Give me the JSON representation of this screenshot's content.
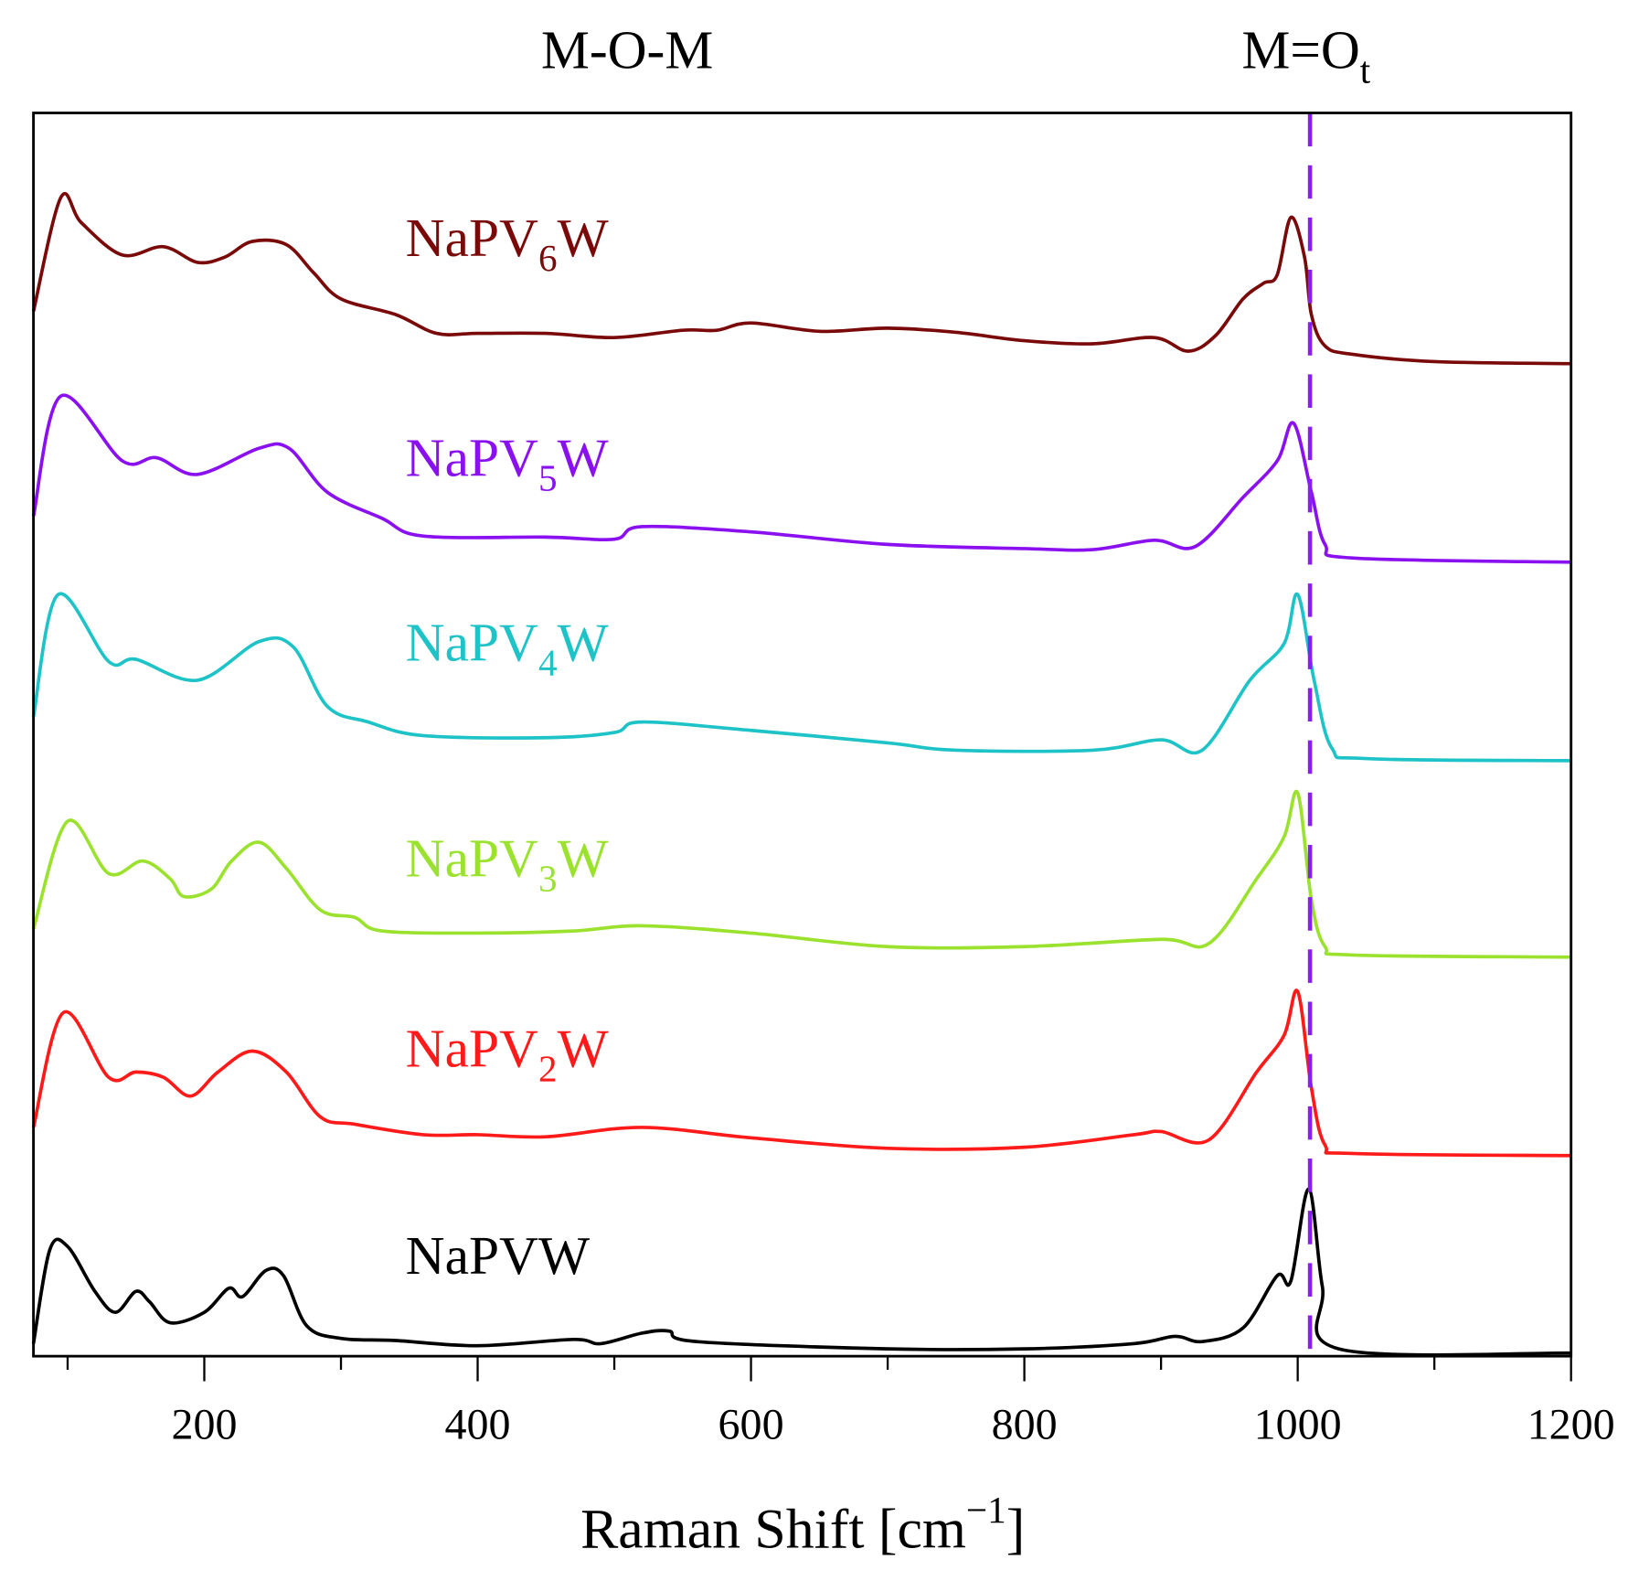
{
  "chart_data": {
    "type": "line",
    "title": "",
    "xlabel": "Raman Shift [cm",
    "xlabel_sup": "−1",
    "xlabel_close": "]",
    "ylabel": "",
    "xlim": [
      75,
      1200
    ],
    "ylim": [
      0,
      1190
    ],
    "xticks": [
      200,
      400,
      600,
      800,
      1000,
      1200
    ],
    "xtick_labels": [
      "200",
      "400",
      "600",
      "800",
      "1000",
      "1200"
    ],
    "minor_xticks": [
      100,
      300,
      500,
      700,
      900,
      1100
    ],
    "grid": false,
    "annotations": [
      {
        "text": "M-O-M",
        "sub": ""
      },
      {
        "text": "M=O",
        "sub": "t"
      }
    ],
    "reference_line": {
      "x": 1009,
      "style": "dashed",
      "color": "#8A1CF5"
    },
    "series": [
      {
        "name": "NaPV",
        "sub": "6",
        "suffix": "W",
        "color": "#7A0A0A",
        "points": [
          [
            75,
            1000
          ],
          [
            95,
            1109
          ],
          [
            110,
            1085
          ],
          [
            140,
            1054
          ],
          [
            170,
            1062
          ],
          [
            195,
            1047
          ],
          [
            215,
            1052
          ],
          [
            235,
            1067
          ],
          [
            260,
            1064
          ],
          [
            280,
            1037
          ],
          [
            300,
            1012
          ],
          [
            340,
            997
          ],
          [
            370,
            979
          ],
          [
            400,
            979
          ],
          [
            450,
            979
          ],
          [
            500,
            975
          ],
          [
            550,
            982
          ],
          [
            575,
            982
          ],
          [
            600,
            989
          ],
          [
            650,
            981
          ],
          [
            700,
            984
          ],
          [
            750,
            980
          ],
          [
            800,
            972
          ],
          [
            850,
            969
          ],
          [
            895,
            975
          ],
          [
            920,
            962
          ],
          [
            940,
            977
          ],
          [
            960,
            1012
          ],
          [
            975,
            1027
          ],
          [
            985,
            1035
          ],
          [
            995,
            1090
          ],
          [
            1005,
            1052
          ],
          [
            1010,
            997
          ],
          [
            1020,
            967
          ],
          [
            1040,
            959
          ],
          [
            1100,
            952
          ],
          [
            1200,
            950
          ]
        ]
      },
      {
        "name": "NaPV",
        "sub": "5",
        "suffix": "W",
        "color": "#8B10F0",
        "points": [
          [
            75,
            804
          ],
          [
            95,
            919
          ],
          [
            140,
            857
          ],
          [
            165,
            860
          ],
          [
            195,
            844
          ],
          [
            240,
            869
          ],
          [
            262,
            869
          ],
          [
            290,
            827
          ],
          [
            330,
            802
          ],
          [
            360,
            785
          ],
          [
            450,
            784
          ],
          [
            500,
            782
          ],
          [
            520,
            794
          ],
          [
            600,
            789
          ],
          [
            700,
            777
          ],
          [
            800,
            773
          ],
          [
            850,
            772
          ],
          [
            895,
            781
          ],
          [
            925,
            775
          ],
          [
            960,
            822
          ],
          [
            985,
            857
          ],
          [
            997,
            893
          ],
          [
            1010,
            827
          ],
          [
            1020,
            777
          ],
          [
            1040,
            764
          ],
          [
            1200,
            760
          ]
        ]
      },
      {
        "name": "NaPV",
        "sub": "4",
        "suffix": "W",
        "color": "#1EC3C8",
        "points": [
          [
            75,
            612
          ],
          [
            93,
            729
          ],
          [
            130,
            665
          ],
          [
            150,
            667
          ],
          [
            195,
            647
          ],
          [
            240,
            684
          ],
          [
            265,
            679
          ],
          [
            290,
            622
          ],
          [
            320,
            607
          ],
          [
            360,
            594
          ],
          [
            450,
            592
          ],
          [
            500,
            597
          ],
          [
            520,
            607
          ],
          [
            600,
            599
          ],
          [
            700,
            587
          ],
          [
            750,
            580
          ],
          [
            850,
            580
          ],
          [
            900,
            590
          ],
          [
            930,
            580
          ],
          [
            965,
            647
          ],
          [
            990,
            682
          ],
          [
            1000,
            729
          ],
          [
            1012,
            647
          ],
          [
            1025,
            582
          ],
          [
            1050,
            572
          ],
          [
            1200,
            570
          ]
        ]
      },
      {
        "name": "NaPV",
        "sub": "3",
        "suffix": "W",
        "color": "#9BE22F",
        "points": [
          [
            75,
            409
          ],
          [
            100,
            512
          ],
          [
            130,
            462
          ],
          [
            155,
            474
          ],
          [
            175,
            457
          ],
          [
            185,
            440
          ],
          [
            205,
            447
          ],
          [
            220,
            474
          ],
          [
            240,
            492
          ],
          [
            260,
            467
          ],
          [
            285,
            427
          ],
          [
            310,
            420
          ],
          [
            330,
            407
          ],
          [
            400,
            405
          ],
          [
            470,
            407
          ],
          [
            520,
            412
          ],
          [
            600,
            405
          ],
          [
            700,
            392
          ],
          [
            800,
            392
          ],
          [
            900,
            399
          ],
          [
            935,
            395
          ],
          [
            970,
            457
          ],
          [
            990,
            497
          ],
          [
            1000,
            539
          ],
          [
            1010,
            437
          ],
          [
            1020,
            392
          ],
          [
            1040,
            384
          ],
          [
            1200,
            382
          ]
        ]
      },
      {
        "name": "NaPV",
        "sub": "2",
        "suffix": "W",
        "color": "#FF1A1A",
        "points": [
          [
            75,
            219
          ],
          [
            97,
            329
          ],
          [
            130,
            267
          ],
          [
            150,
            272
          ],
          [
            170,
            267
          ],
          [
            190,
            249
          ],
          [
            210,
            272
          ],
          [
            235,
            292
          ],
          [
            260,
            272
          ],
          [
            285,
            229
          ],
          [
            310,
            222
          ],
          [
            360,
            212
          ],
          [
            400,
            212
          ],
          [
            450,
            210
          ],
          [
            520,
            219
          ],
          [
            600,
            209
          ],
          [
            700,
            199
          ],
          [
            800,
            200
          ],
          [
            880,
            212
          ],
          [
            900,
            215
          ],
          [
            935,
            207
          ],
          [
            970,
            272
          ],
          [
            990,
            307
          ],
          [
            1000,
            349
          ],
          [
            1010,
            257
          ],
          [
            1020,
            202
          ],
          [
            1040,
            194
          ],
          [
            1200,
            192
          ]
        ]
      },
      {
        "name": "NaPVW",
        "sub": "",
        "suffix": "",
        "color": "#000000",
        "points": [
          [
            75,
            12
          ],
          [
            87,
            102
          ],
          [
            100,
            105
          ],
          [
            120,
            62
          ],
          [
            135,
            42
          ],
          [
            150,
            62
          ],
          [
            160,
            52
          ],
          [
            175,
            32
          ],
          [
            200,
            42
          ],
          [
            218,
            65
          ],
          [
            228,
            57
          ],
          [
            245,
            82
          ],
          [
            258,
            77
          ],
          [
            275,
            29
          ],
          [
            300,
            17
          ],
          [
            340,
            15
          ],
          [
            400,
            10
          ],
          [
            470,
            16
          ],
          [
            490,
            12
          ],
          [
            520,
            22
          ],
          [
            540,
            24
          ],
          [
            560,
            14
          ],
          [
            700,
            7
          ],
          [
            800,
            7
          ],
          [
            880,
            12
          ],
          [
            910,
            19
          ],
          [
            930,
            14
          ],
          [
            960,
            27
          ],
          [
            985,
            77
          ],
          [
            995,
            72
          ],
          [
            1008,
            160
          ],
          [
            1018,
            67
          ],
          [
            1030,
            7
          ],
          [
            1200,
            3
          ]
        ]
      }
    ]
  }
}
